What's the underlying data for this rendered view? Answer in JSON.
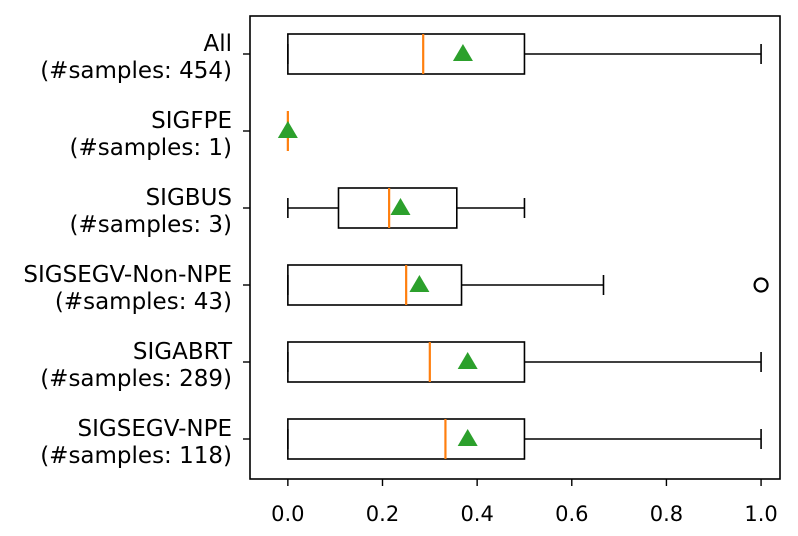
{
  "chart_data": {
    "type": "boxplot",
    "orientation": "horizontal",
    "title": "",
    "xlabel": "",
    "ylabel": "",
    "xlim": [
      -0.08,
      1.04
    ],
    "xticks": [
      0.0,
      0.2,
      0.4,
      0.6,
      0.8,
      1.0
    ],
    "xtick_labels": [
      "0.0",
      "0.2",
      "0.4",
      "0.6",
      "0.8",
      "1.0"
    ],
    "grid": false,
    "colors": {
      "box": "#000000",
      "median": "#ff7f0e",
      "mean": "#2ca02c",
      "outlier": "#000000"
    },
    "categories": [
      {
        "name": "All",
        "samples_label": "(#samples: 454)",
        "whisker_low": 0.0,
        "q1": 0.0,
        "median": 0.286,
        "q3": 0.5,
        "whisker_high": 1.0,
        "mean": 0.37,
        "outliers": []
      },
      {
        "name": "SIGFPE",
        "samples_label": "(#samples: 1)",
        "whisker_low": 0.0,
        "q1": 0.0,
        "median": 0.0,
        "q3": 0.0,
        "whisker_high": 0.0,
        "mean": 0.0,
        "outliers": []
      },
      {
        "name": "SIGBUS",
        "samples_label": "(#samples: 3)",
        "whisker_low": 0.0,
        "q1": 0.107,
        "median": 0.214,
        "q3": 0.357,
        "whisker_high": 0.5,
        "mean": 0.238,
        "outliers": []
      },
      {
        "name": "SIGSEGV-Non-NPE",
        "samples_label": "(#samples: 43)",
        "whisker_low": 0.0,
        "q1": 0.0,
        "median": 0.25,
        "q3": 0.367,
        "whisker_high": 0.667,
        "mean": 0.278,
        "outliers": [
          1.0
        ]
      },
      {
        "name": "SIGABRT",
        "samples_label": "(#samples: 289)",
        "whisker_low": 0.0,
        "q1": 0.0,
        "median": 0.3,
        "q3": 0.5,
        "whisker_high": 1.0,
        "mean": 0.38,
        "outliers": []
      },
      {
        "name": "SIGSEGV-NPE",
        "samples_label": "(#samples: 118)",
        "whisker_low": 0.0,
        "q1": 0.0,
        "median": 0.333,
        "q3": 0.5,
        "whisker_high": 1.0,
        "mean": 0.38,
        "outliers": []
      }
    ]
  }
}
